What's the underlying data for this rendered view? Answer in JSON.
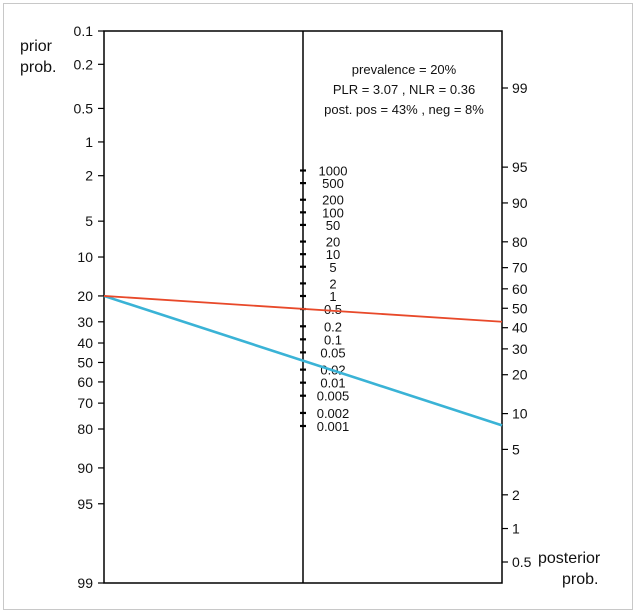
{
  "chart_data": {
    "type": "nomogram",
    "left_axis": {
      "label_line1": "prior",
      "label_line2": "prob.",
      "ticks": [
        "0.1",
        "0.2",
        "0.5",
        "1",
        "2",
        "5",
        "10",
        "20",
        "30",
        "40",
        "50",
        "60",
        "70",
        "80",
        "90",
        "95",
        "99"
      ]
    },
    "middle_axis": {
      "ticks": [
        "1000",
        "500",
        "200",
        "100",
        "50",
        "20",
        "10",
        "5",
        "2",
        "1",
        "0.5",
        "0.2",
        "0.1",
        "0.05",
        "0.02",
        "0.01",
        "0.005",
        "0.002",
        "0.001"
      ]
    },
    "right_axis": {
      "label_line1": "posterior",
      "label_line2": "prob.",
      "ticks": [
        "99",
        "95",
        "90",
        "80",
        "70",
        "60",
        "50",
        "40",
        "30",
        "20",
        "10",
        "5",
        "2",
        "1",
        "0.5"
      ]
    },
    "annotations": [
      "prevalence = 20%",
      "PLR = 3.07 , NLR = 0.36",
      "post. pos = 43% , neg = 8%"
    ],
    "series": [
      {
        "color": "#3ab3d6",
        "prior": 20,
        "likelihood_ratio": 0.36,
        "posterior": 8
      },
      {
        "color": "#e8492a",
        "prior": 20,
        "likelihood_ratio": 3.07,
        "posterior": 43
      }
    ]
  }
}
